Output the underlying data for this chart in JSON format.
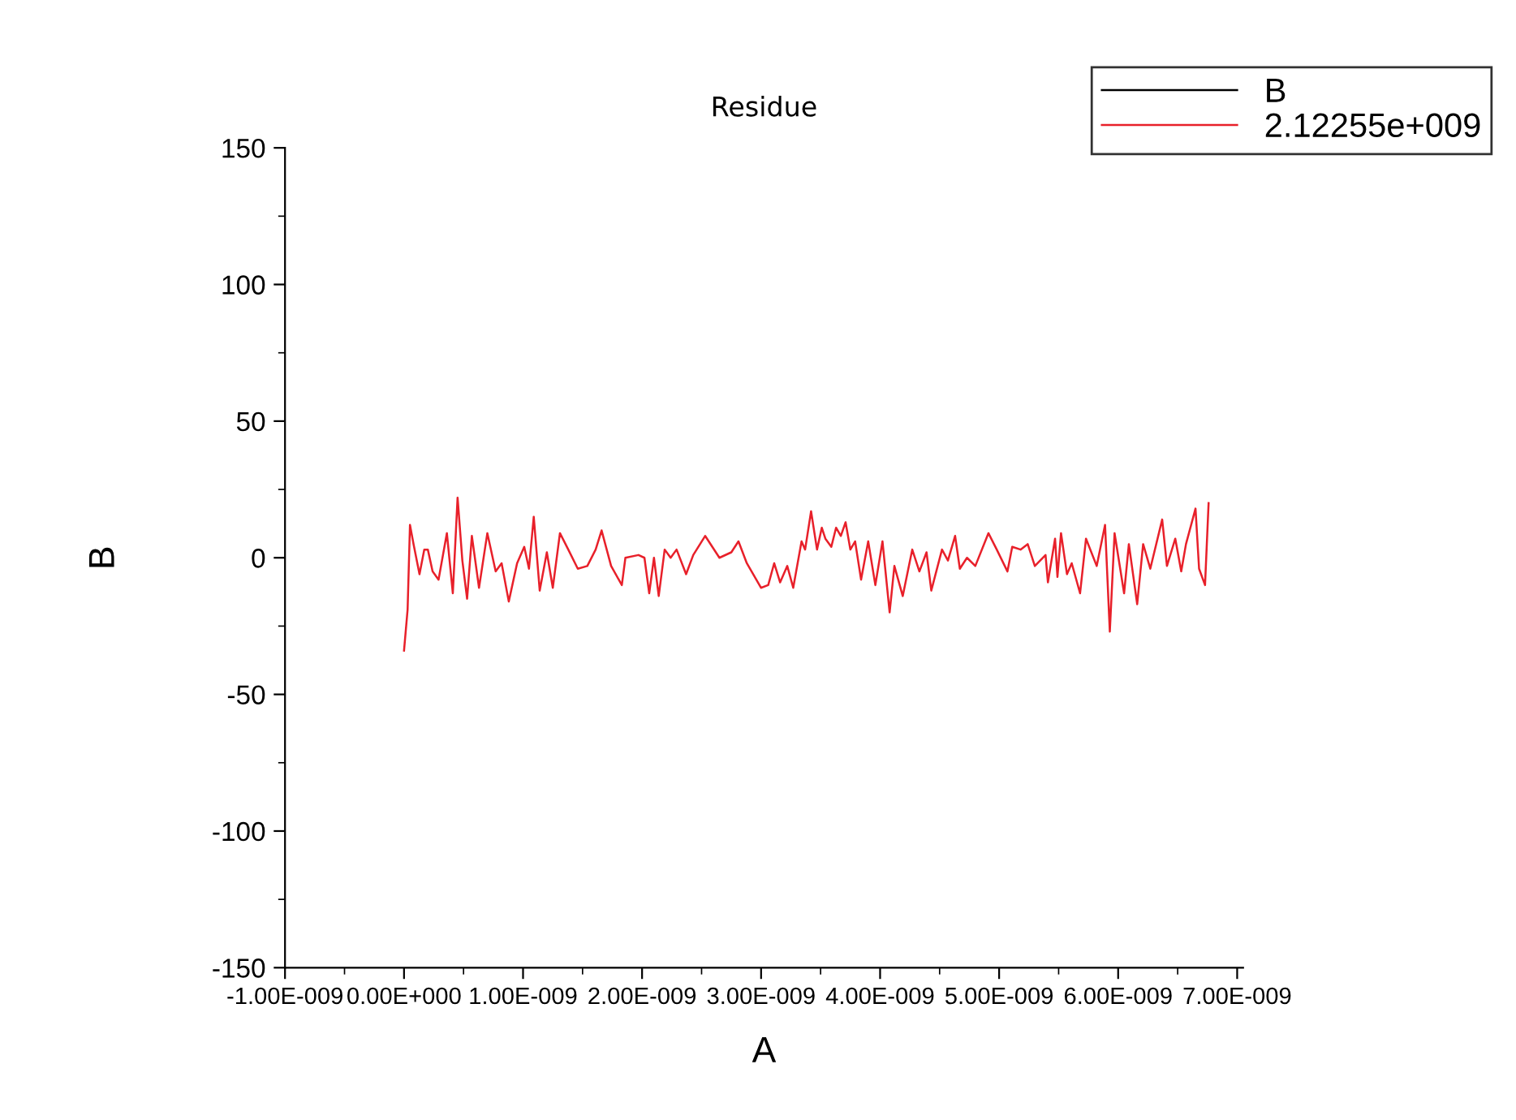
{
  "chart_data": {
    "type": "line",
    "title": "Residue",
    "xlabel": "A",
    "ylabel": "B",
    "xlim": [
      -1e-09,
      7.05e-09
    ],
    "xticks": [
      {
        "value": -1e-09,
        "label": "-1.00E-009"
      },
      {
        "value": 0,
        "label": "0.00E+000"
      },
      {
        "value": 1e-09,
        "label": "1.00E-009"
      },
      {
        "value": 2e-09,
        "label": "2.00E-009"
      },
      {
        "value": 3e-09,
        "label": "3.00E-009"
      },
      {
        "value": 4e-09,
        "label": "4.00E-009"
      },
      {
        "value": 5e-09,
        "label": "5.00E-009"
      },
      {
        "value": 6e-09,
        "label": "6.00E-009"
      },
      {
        "value": 7e-09,
        "label": "7.00E-009"
      }
    ],
    "ylim": [
      -150,
      150
    ],
    "yticks": [
      -150,
      -100,
      -50,
      0,
      50,
      100,
      150
    ],
    "grid": false,
    "legend": "top right",
    "marker": "none",
    "line_style": "solid",
    "series": [
      {
        "name": "B",
        "color": "#000000"
      },
      {
        "name": "2.12255e+009",
        "color": "#e8202a",
        "x": [
          0,
          3e-11,
          5e-11,
          8e-11,
          1.3e-10,
          1.7e-10,
          2e-10,
          2.4e-10,
          2.9e-10,
          3.6e-10,
          4.1e-10,
          4.5e-10,
          4.9e-10,
          5.3e-10,
          5.7e-10,
          6.3e-10,
          7e-10,
          7.7e-10,
          8.2e-10,
          8.8e-10,
          9.5e-10,
          1.01e-09,
          1.05e-09,
          1.09e-09,
          1.14e-09,
          1.2e-09,
          1.25e-09,
          1.31e-09,
          1.38e-09,
          1.46e-09,
          1.54e-09,
          1.61e-09,
          1.66e-09,
          1.74e-09,
          1.83e-09,
          1.86e-09,
          1.97e-09,
          2.02e-09,
          2.06e-09,
          2.1e-09,
          2.14e-09,
          2.19e-09,
          2.24e-09,
          2.29e-09,
          2.37e-09,
          2.43e-09,
          2.53e-09,
          2.65e-09,
          2.75e-09,
          2.81e-09,
          2.88e-09,
          3e-09,
          3.06e-09,
          3.11e-09,
          3.16e-09,
          3.22e-09,
          3.27e-09,
          3.34e-09,
          3.37e-09,
          3.42e-09,
          3.47e-09,
          3.51e-09,
          3.54e-09,
          3.59e-09,
          3.63e-09,
          3.67e-09,
          3.71e-09,
          3.75e-09,
          3.79e-09,
          3.84e-09,
          3.9e-09,
          3.96e-09,
          4.02e-09,
          4.08e-09,
          4.12e-09,
          4.19e-09,
          4.27e-09,
          4.33e-09,
          4.39e-09,
          4.43e-09,
          4.52e-09,
          4.57e-09,
          4.63e-09,
          4.67e-09,
          4.73e-09,
          4.8e-09,
          4.91e-09,
          4.98e-09,
          5.07e-09,
          5.11e-09,
          5.18e-09,
          5.24e-09,
          5.3e-09,
          5.39e-09,
          5.41e-09,
          5.47e-09,
          5.49e-09,
          5.52e-09,
          5.57e-09,
          5.61e-09,
          5.68e-09,
          5.73e-09,
          5.82e-09,
          5.89e-09,
          5.93e-09,
          5.97e-09,
          6.05e-09,
          6.09e-09,
          6.16e-09,
          6.21e-09,
          6.27e-09,
          6.37e-09,
          6.41e-09,
          6.48e-09,
          6.53e-09,
          6.57e-09,
          6.65e-09,
          6.68e-09,
          6.73e-09,
          6.76e-09
        ],
        "values": [
          -34,
          -19,
          12,
          5,
          -6,
          3,
          3,
          -5,
          -8,
          9,
          -13,
          22,
          -1,
          -15,
          8,
          -11,
          9,
          -5,
          -2,
          -16,
          -2,
          4,
          -4,
          15,
          -12,
          2,
          -11,
          9,
          3,
          -4,
          -3,
          3,
          10,
          -3,
          -10,
          0,
          1,
          0,
          -13,
          0,
          -14,
          3,
          0,
          3,
          -6,
          1,
          8,
          0,
          2,
          6,
          -2,
          -11,
          -10,
          -2,
          -9,
          -3,
          -11,
          6,
          3,
          17,
          3,
          11,
          7,
          4,
          11,
          8,
          13,
          3,
          6,
          -8,
          6,
          -10,
          6,
          -20,
          -3,
          -14,
          3,
          -5,
          2,
          -12,
          3,
          -1,
          8,
          -4,
          0,
          -3,
          9,
          3,
          -5,
          4,
          3,
          5,
          -3,
          1,
          -9,
          7,
          -7,
          9,
          -6,
          -2,
          -13,
          7,
          -3,
          12,
          -27,
          9,
          -13,
          5,
          -17,
          5,
          -4,
          14,
          -3,
          7,
          -5,
          5,
          18,
          -4,
          -10,
          20
        ]
      }
    ]
  }
}
